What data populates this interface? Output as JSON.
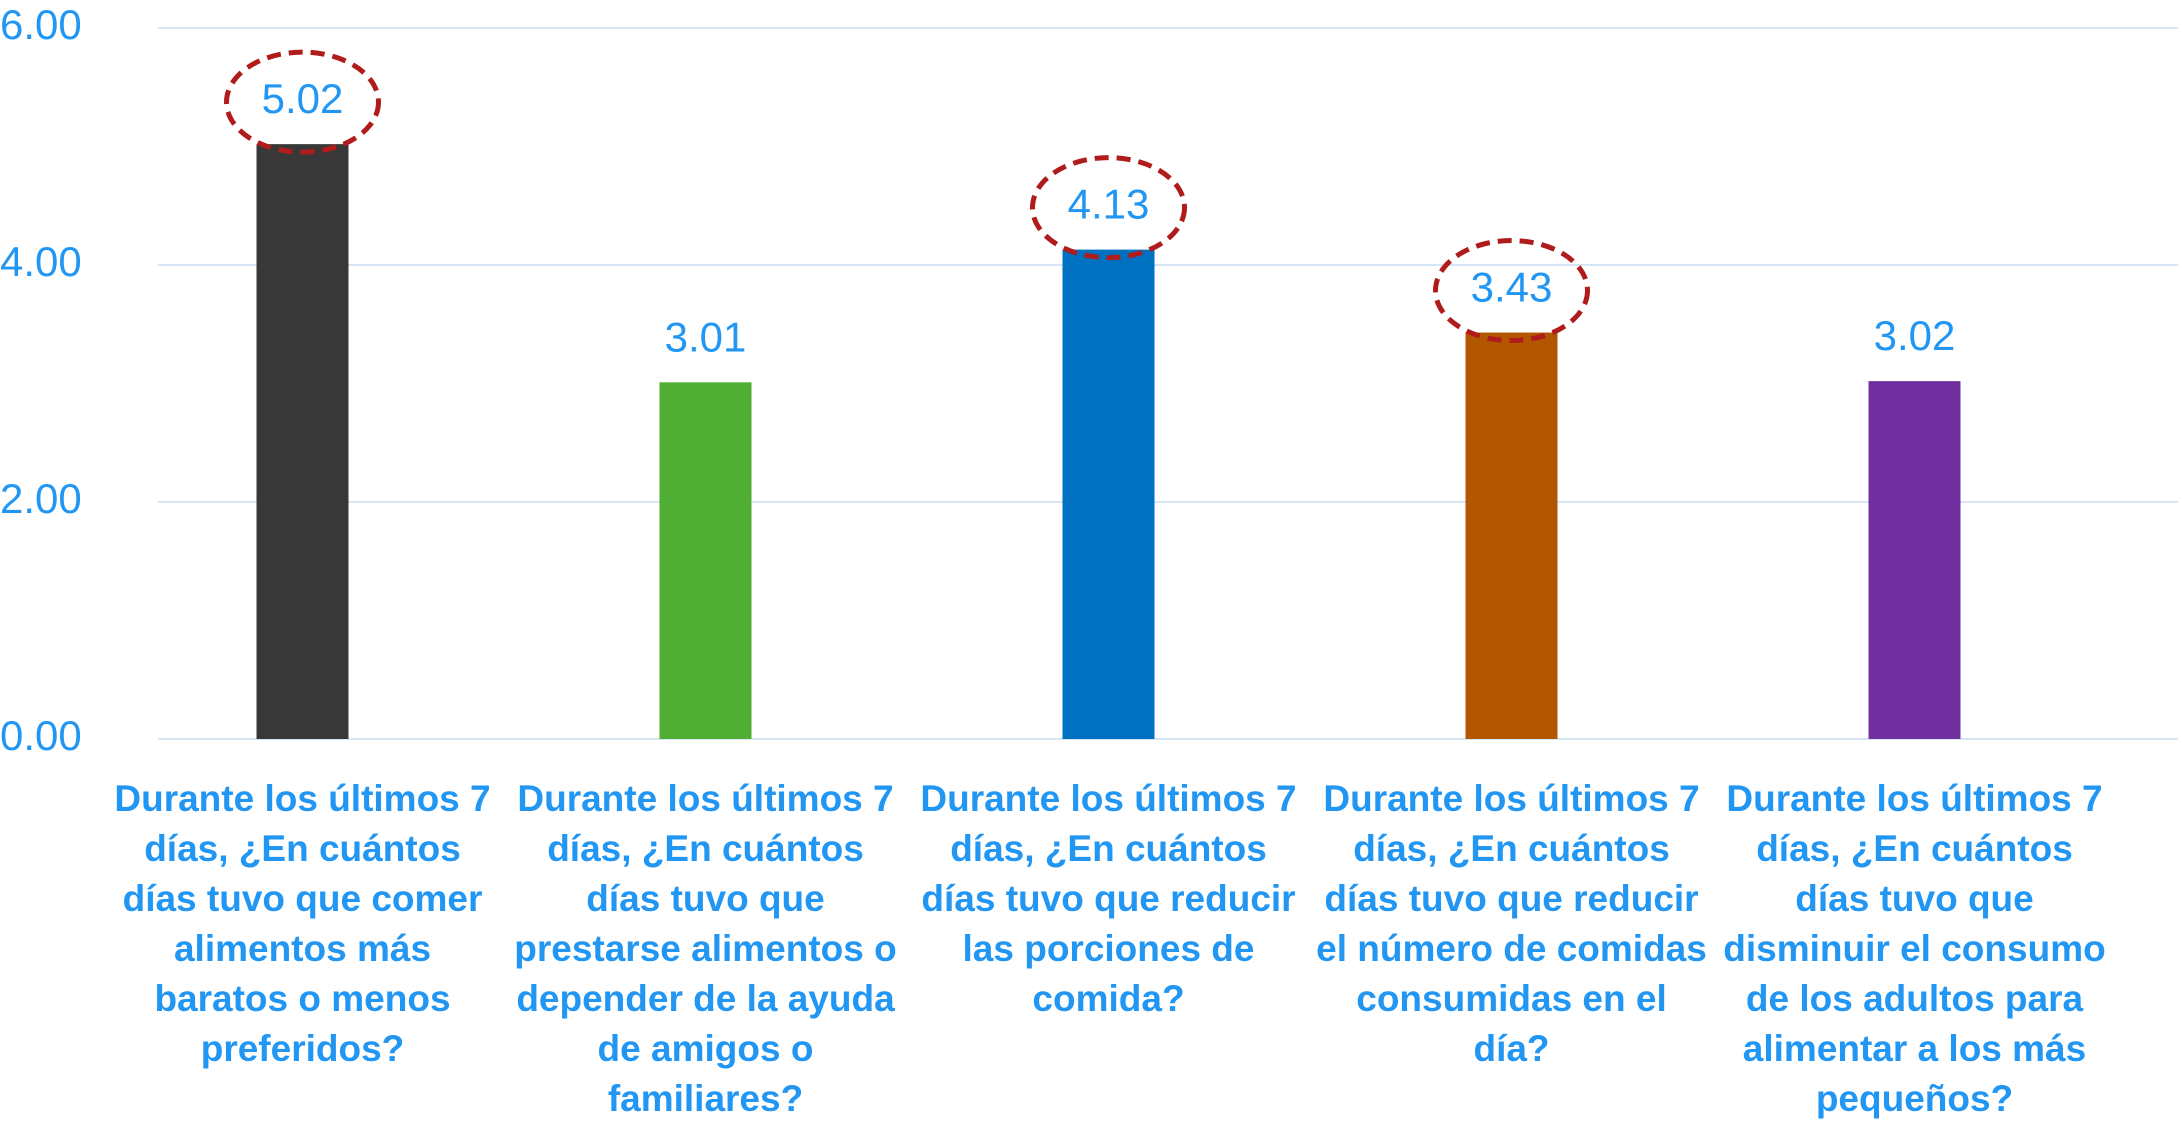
{
  "chart_data": {
    "type": "bar",
    "categories": [
      "Durante los últimos 7 días, ¿En cuántos días tuvo que comer alimentos más baratos o menos preferidos?",
      "Durante los últimos 7 días, ¿En cuántos días tuvo que prestarse alimentos o depender de la ayuda de amigos o familiares?",
      "Durante los últimos 7 días, ¿En cuántos días tuvo que reducir las porciones de comida?",
      "Durante los últimos 7 días, ¿En cuántos días tuvo que reducir el número de comidas consumidas en el día?",
      "Durante los últimos 7 días, ¿En cuántos días tuvo que disminuir el consumo de los adultos para alimentar a los más pequeños?"
    ],
    "values": [
      5.02,
      3.01,
      4.13,
      3.43,
      3.02
    ],
    "value_labels": [
      "5.02",
      "3.01",
      "4.13",
      "3.43",
      "3.02"
    ],
    "colors": [
      "#383838",
      "#4fae33",
      "#0070c0",
      "#b35600",
      "#7030a0"
    ],
    "highlighted": [
      true,
      false,
      true,
      true,
      false
    ],
    "ylim": [
      0,
      6
    ],
    "yticks": [
      {
        "value": 0,
        "label": "0.00"
      },
      {
        "value": 2,
        "label": "2.00"
      },
      {
        "value": 4,
        "label": "4.00"
      },
      {
        "value": 6,
        "label": "6.00"
      }
    ],
    "grid": true
  }
}
